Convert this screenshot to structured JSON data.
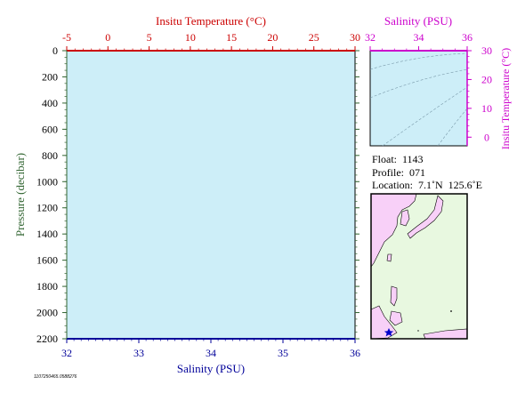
{
  "colors": {
    "temperature": "#cc0000",
    "salinity_bottom": "#000099",
    "magenta": "#cc00cc",
    "pressure_axis": "#336633",
    "plot_bg": "#cdeef8",
    "land": "#f8d0f8",
    "ocean": "#e8f8e0",
    "marker": "#0000cc"
  },
  "chart_data": [
    {
      "type": "line",
      "name": "profile",
      "title": "",
      "x_top_label": "Insitu Temperature (°C)",
      "x_top_ticks": [
        "-5",
        "0",
        "5",
        "10",
        "15",
        "20",
        "25",
        "30"
      ],
      "x_top_range": [
        -5,
        30
      ],
      "x_bottom_label": "Salinity (PSU)",
      "x_bottom_ticks": [
        "32",
        "33",
        "34",
        "35",
        "36"
      ],
      "x_bottom_range": [
        32,
        36
      ],
      "ylabel": "Pressure (decibar)",
      "y_ticks": [
        "0",
        "200",
        "400",
        "600",
        "800",
        "1000",
        "1200",
        "1400",
        "1600",
        "1800",
        "2000",
        "2200"
      ],
      "y_range": [
        0,
        2200
      ],
      "y_reversed": true,
      "series": []
    },
    {
      "type": "scatter",
      "name": "ts-diagram",
      "title": "",
      "xlabel": "Salinity (PSU)",
      "x_ticks": [
        "32",
        "34",
        "36"
      ],
      "x_range": [
        32,
        36
      ],
      "ylabel": "Insitu Temperature (°C)",
      "y_ticks": [
        "0",
        "10",
        "20",
        "30"
      ],
      "y_range": [
        -3,
        30
      ],
      "series": []
    }
  ],
  "info": {
    "float": "Float:  1143",
    "profile": "Profile:  071",
    "location": "Location:  7.1˚N  125.6˚E"
  },
  "map": {
    "region": "Western Pacific / East Asia",
    "marker_lat": 7.1,
    "marker_lon": 125.6
  },
  "footer_id": "1107250465.0588276"
}
